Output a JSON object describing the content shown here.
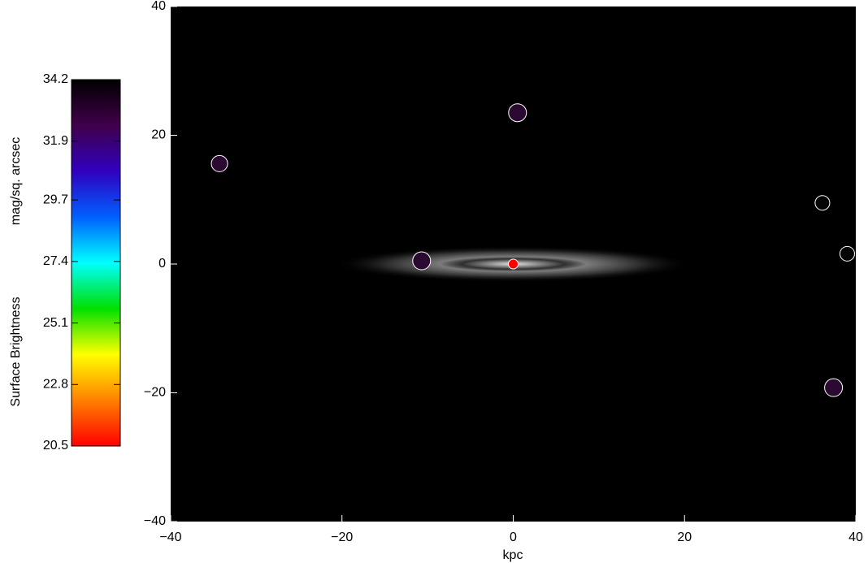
{
  "chart_data": {
    "type": "scatter",
    "xlabel": "kpc",
    "xlim": [
      -40,
      40
    ],
    "ylim": [
      -40,
      40
    ],
    "xticks": [
      {
        "value": -40,
        "label": "−40"
      },
      {
        "value": -20,
        "label": "−20"
      },
      0,
      20,
      40
    ],
    "yticks": [
      {
        "value": -40,
        "label": "−40"
      },
      {
        "value": -20,
        "label": "−20"
      },
      0,
      20,
      40
    ],
    "background": "#000000",
    "points": {
      "x": [
        0.5,
        -34.3,
        36.1,
        39.0,
        -10.7,
        37.4,
        0
      ],
      "y": [
        23.5,
        15.6,
        9.5,
        1.6,
        0.5,
        -19.2,
        0
      ],
      "colors": [
        "#2a0a30",
        "#2a0a30",
        "#050505",
        "#050505",
        "#2a0a30",
        "#2a0a30",
        "#ff0000"
      ],
      "sizes": [
        11,
        10,
        9,
        9,
        11,
        11,
        6
      ]
    },
    "colorbar": {
      "label": "Surface Brightness",
      "units": "mag/sq. arcsec",
      "lim": [
        20.5,
        34.2
      ],
      "ticks": [
        34.2,
        31.9,
        29.7,
        27.4,
        25.1,
        22.8,
        20.5
      ],
      "colors": [
        "#ff0000",
        "#ff8000",
        "#ffff00",
        "#00e000",
        "#00ffff",
        "#0060ff",
        "#3000c0",
        "#40004a",
        "#000000"
      ]
    }
  }
}
